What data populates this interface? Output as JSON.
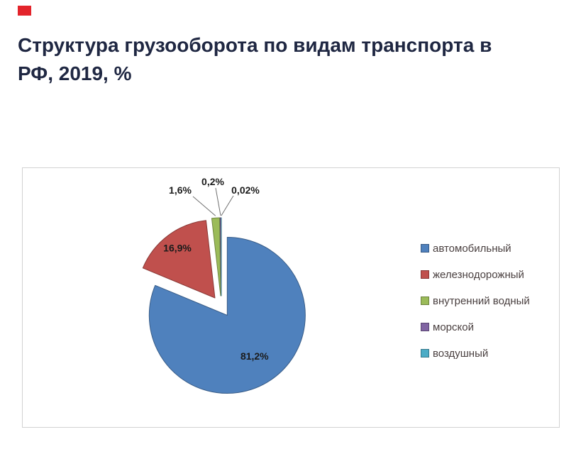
{
  "page": {
    "brand_mark_color": "#e3242b",
    "title_color": "#1f2742",
    "title": "Структура грузооборота по видам транспорта в\nРФ, 2019, %"
  },
  "chart_data": {
    "type": "pie",
    "title": "Структура грузооборота по видам транспорта в РФ, 2019, %",
    "unit": "%",
    "categories": [
      "автомобильный",
      "железнодорожный",
      "внутренний водный",
      "морской",
      "воздушный"
    ],
    "values": [
      81.2,
      16.9,
      1.6,
      0.2,
      0.02
    ],
    "labels": [
      "81,2%",
      "16,9%",
      "1,6%",
      "0,2%",
      "0,02%"
    ],
    "colors": [
      "#4f81bd",
      "#c0504d",
      "#9bbb59",
      "#8064a2",
      "#4bacc6"
    ],
    "legend_position": "right",
    "start_angle_deg": 0,
    "direction": "clockwise",
    "exploded": true
  }
}
